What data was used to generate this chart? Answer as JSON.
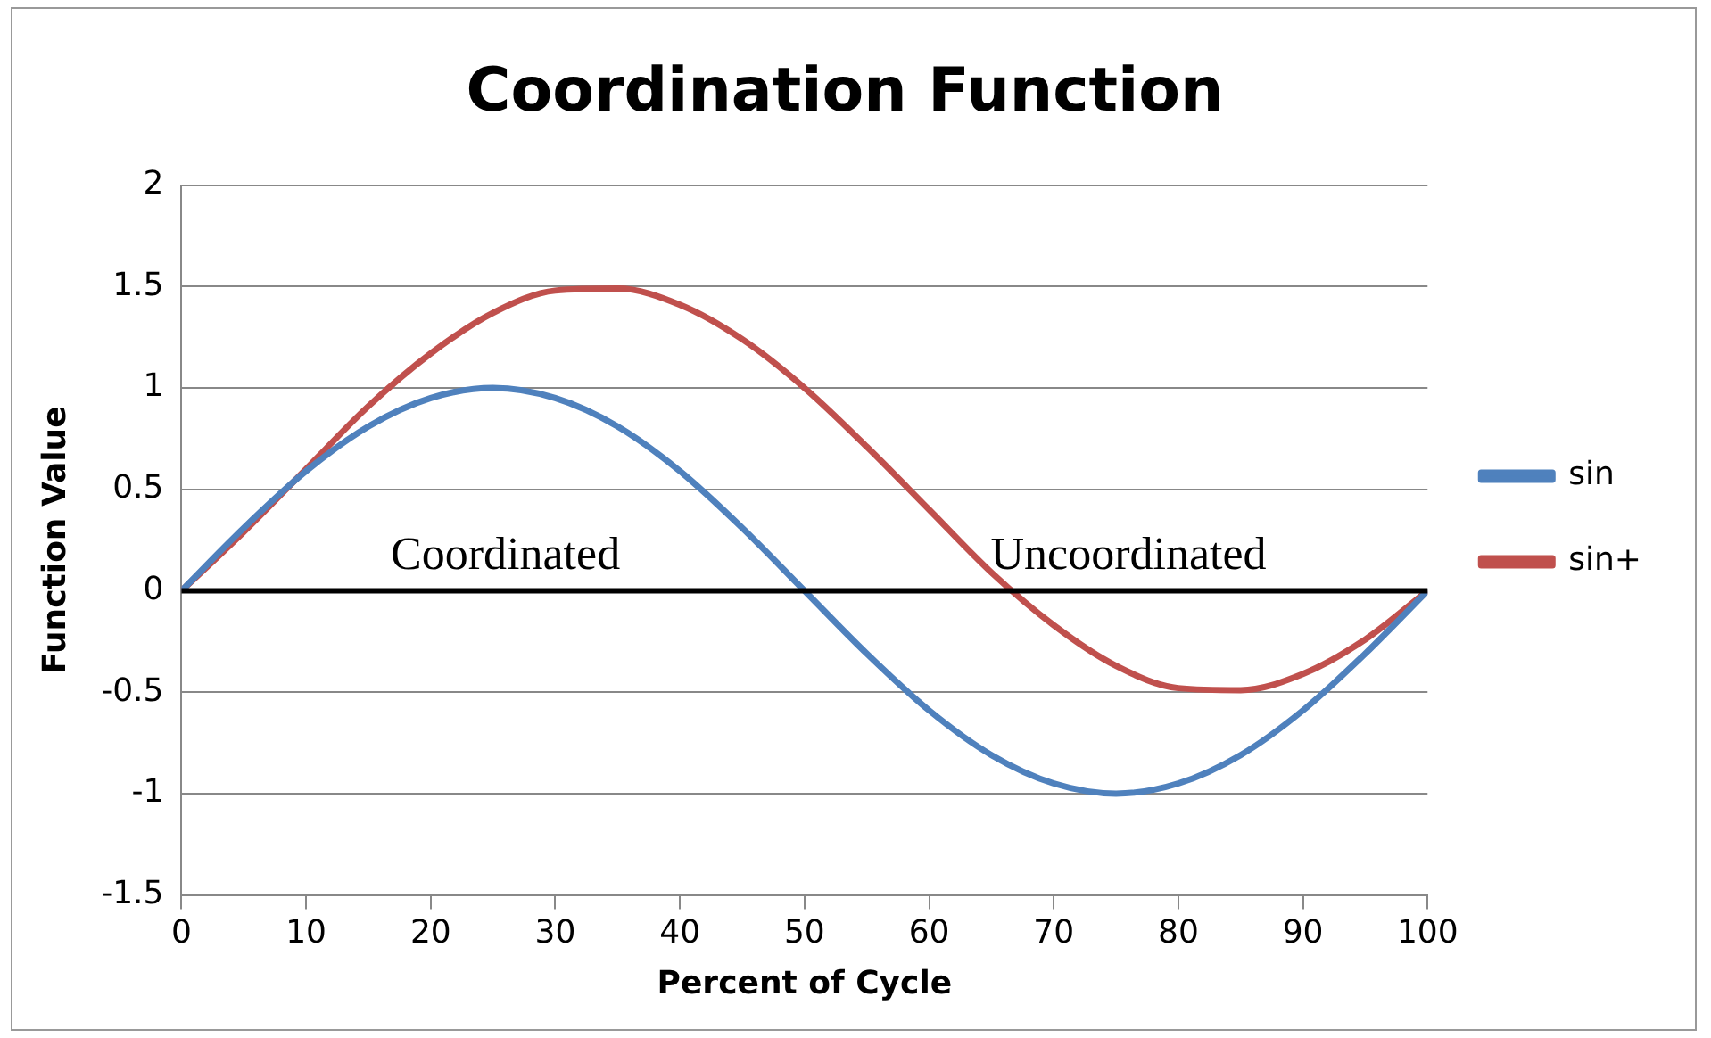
{
  "chart_data": {
    "type": "line",
    "title": "Coordination Function",
    "xlabel": "Percent of Cycle",
    "ylabel": "Function Value",
    "x": [
      0,
      5,
      10,
      15,
      20,
      25,
      30,
      35,
      40,
      45,
      50,
      55,
      60,
      65,
      70,
      75,
      80,
      85,
      90,
      95,
      100
    ],
    "series": [
      {
        "name": "sin",
        "color": "#4f81bd",
        "values": [
          0,
          0.31,
          0.59,
          0.81,
          0.95,
          1,
          0.95,
          0.81,
          0.59,
          0.31,
          0,
          -0.31,
          -0.59,
          -0.81,
          -0.95,
          -1,
          -0.95,
          -0.81,
          -0.59,
          -0.31,
          0
        ]
      },
      {
        "name": "sin+",
        "color": "#c0504d",
        "values": [
          0,
          0.29,
          0.6,
          0.91,
          1.17,
          1.37,
          1.48,
          1.49,
          1.41,
          1.24,
          1,
          0.71,
          0.4,
          0.09,
          -0.17,
          -0.37,
          -0.48,
          -0.49,
          -0.41,
          -0.24,
          0
        ]
      }
    ],
    "xlim": [
      0,
      100
    ],
    "xticks": [
      0,
      10,
      20,
      30,
      40,
      50,
      60,
      70,
      80,
      90,
      100
    ],
    "ylim": [
      -1.5,
      2
    ],
    "yticks": [
      -1.5,
      -1,
      -0.5,
      0,
      0.5,
      1,
      1.5,
      2
    ],
    "ref_lines": [
      {
        "axis": "y",
        "value": 0,
        "color": "#000000"
      }
    ],
    "annotations": [
      {
        "text": "Coordinated",
        "x": 26,
        "y": 0
      },
      {
        "text": "Uncoordinated",
        "x": 76,
        "y": 0
      }
    ],
    "grid": "y",
    "legend": "right",
    "marker": "none",
    "line_style": "solid"
  }
}
